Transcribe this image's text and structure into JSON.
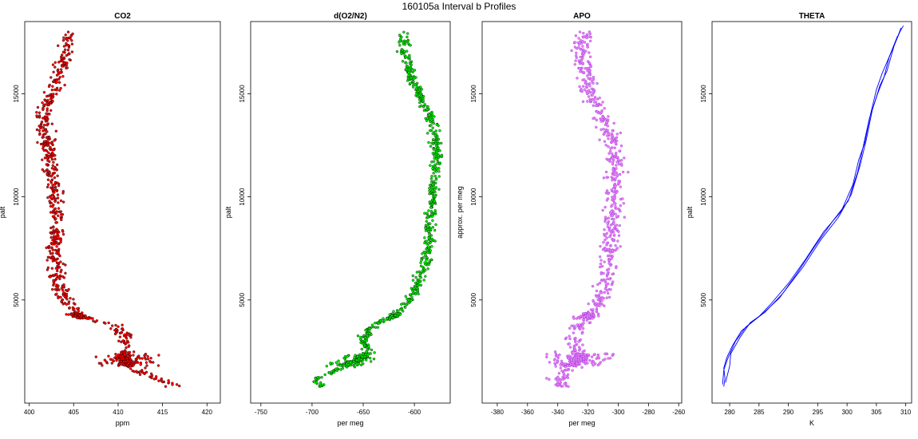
{
  "figure": {
    "title": "160105a   Interval b Profiles"
  },
  "chart_data": [
    {
      "type": "scatter",
      "title": "CO2",
      "xlabel": "ppm",
      "ylabel": "palt",
      "xlim": [
        399.5,
        421.5
      ],
      "ylim": [
        0,
        18500
      ],
      "xticks": [
        400,
        405,
        410,
        415,
        420
      ],
      "yticks": [
        5000,
        10000,
        15000
      ],
      "grid": false,
      "colors": {
        "points": "#ff0000",
        "outline": "#000000"
      },
      "profile": {
        "y": [
          900,
          1100,
          1500,
          1900,
          2200,
          2600,
          3200,
          3800,
          4200,
          5000,
          6000,
          7000,
          8000,
          9000,
          10000,
          11000,
          12000,
          13000,
          14000,
          15000,
          16000,
          17000,
          18000
        ],
        "x": [
          416.5,
          414.8,
          412.5,
          410.8,
          410.6,
          411.0,
          410.8,
          409.5,
          405.5,
          404.0,
          403.2,
          402.8,
          403.0,
          403.3,
          403.0,
          402.6,
          402.3,
          401.8,
          401.5,
          402.5,
          403.4,
          404.2,
          404.5
        ],
        "x_spread": 0.9
      }
    },
    {
      "type": "scatter",
      "title": "d(O2/N2)",
      "xlabel": "per meg",
      "ylabel": "palt",
      "xlim": [
        -760,
        -565
      ],
      "ylim": [
        0,
        18500
      ],
      "xticks": [
        -750,
        -700,
        -650,
        -600
      ],
      "yticks": [
        5000,
        10000,
        15000
      ],
      "grid": false,
      "colors": {
        "points": "#00ee00",
        "outline": "#000000"
      },
      "profile": {
        "y": [
          900,
          1100,
          1500,
          1900,
          2200,
          2600,
          3200,
          3800,
          4200,
          5000,
          6000,
          7000,
          8000,
          9000,
          10000,
          11000,
          12000,
          13000,
          14000,
          15000,
          16000,
          17000,
          18000
        ],
        "x": [
          -690,
          -700,
          -680,
          -665,
          -650,
          -645,
          -650,
          -640,
          -620,
          -605,
          -595,
          -588,
          -585,
          -585,
          -583,
          -580,
          -578,
          -580,
          -585,
          -595,
          -605,
          -610,
          -612
        ],
        "x_spread": 5
      }
    },
    {
      "type": "scatter",
      "title": "APO",
      "xlabel": "per meg",
      "ylabel": "approx. per meg",
      "xlim": [
        -390,
        -258
      ],
      "ylim": [
        0,
        18500
      ],
      "xticks": [
        -380,
        -360,
        -340,
        -320,
        -300,
        -280,
        -260
      ],
      "yticks": [
        5000,
        10000,
        15000
      ],
      "grid": false,
      "colors": {
        "points": "#ee82ee",
        "outline": "#8a2be2"
      },
      "profile": {
        "y": [
          900,
          1100,
          1500,
          1900,
          2200,
          2600,
          3200,
          3800,
          4200,
          5000,
          6000,
          7000,
          8000,
          9000,
          10000,
          11000,
          12000,
          13000,
          14000,
          15000,
          16000,
          17000,
          18000
        ],
        "x": [
          -338,
          -340,
          -336,
          -330,
          -325,
          -328,
          -330,
          -325,
          -320,
          -312,
          -308,
          -306,
          -305,
          -304,
          -302,
          -302,
          -302,
          -305,
          -312,
          -318,
          -322,
          -325,
          -322
        ],
        "x_spread": 6
      }
    },
    {
      "type": "line",
      "title": "THETA",
      "xlabel": "K",
      "ylabel": "palt",
      "xlim": [
        277,
        311
      ],
      "ylim": [
        0,
        18500
      ],
      "xticks": [
        280,
        285,
        290,
        295,
        300,
        305,
        310
      ],
      "yticks": [
        5000,
        10000,
        15000
      ],
      "grid": false,
      "colors": {
        "line": "#0000ff"
      },
      "series": [
        {
          "values": [
            [
              279.0,
              800
            ],
            [
              279.2,
              1200
            ],
            [
              279.0,
              1700
            ],
            [
              279.5,
              2200
            ],
            [
              280.5,
              2800
            ],
            [
              282.0,
              3500
            ],
            [
              285.0,
              4200
            ],
            [
              287.0,
              4800
            ],
            [
              290.0,
              5800
            ],
            [
              293.0,
              7000
            ],
            [
              296.0,
              8300
            ],
            [
              299.0,
              9300
            ],
            [
              301.0,
              10600
            ],
            [
              302.0,
              11800
            ],
            [
              303.0,
              12600
            ],
            [
              304.0,
              14000
            ],
            [
              305.0,
              15200
            ],
            [
              306.0,
              16000
            ],
            [
              307.5,
              17000
            ],
            [
              309.0,
              18000
            ],
            [
              309.6,
              18300
            ]
          ]
        },
        {
          "values": [
            [
              279.3,
              1000
            ],
            [
              280.0,
              1800
            ],
            [
              280.2,
              2400
            ],
            [
              281.8,
              3200
            ],
            [
              283.5,
              3900
            ],
            [
              286.0,
              4400
            ],
            [
              289.0,
              5300
            ],
            [
              292.5,
              6600
            ],
            [
              295.5,
              7900
            ],
            [
              298.5,
              9000
            ],
            [
              300.7,
              10100
            ],
            [
              302.2,
              11500
            ],
            [
              303.3,
              12800
            ],
            [
              304.3,
              14200
            ],
            [
              305.6,
              15400
            ],
            [
              306.8,
              16100
            ],
            [
              308.0,
              17300
            ],
            [
              309.2,
              18200
            ]
          ]
        },
        {
          "values": [
            [
              278.8,
              900
            ],
            [
              279.0,
              1600
            ],
            [
              279.6,
              2100
            ],
            [
              281.0,
              3000
            ],
            [
              282.8,
              3700
            ],
            [
              285.5,
              4300
            ],
            [
              288.5,
              5100
            ],
            [
              291.5,
              6300
            ],
            [
              294.5,
              7600
            ],
            [
              297.5,
              8800
            ],
            [
              300.2,
              9800
            ],
            [
              301.8,
              11200
            ],
            [
              302.8,
              12500
            ],
            [
              303.8,
              13800
            ],
            [
              305.2,
              15000
            ],
            [
              306.3,
              15800
            ],
            [
              307.2,
              16800
            ],
            [
              308.6,
              17800
            ]
          ]
        }
      ]
    }
  ]
}
